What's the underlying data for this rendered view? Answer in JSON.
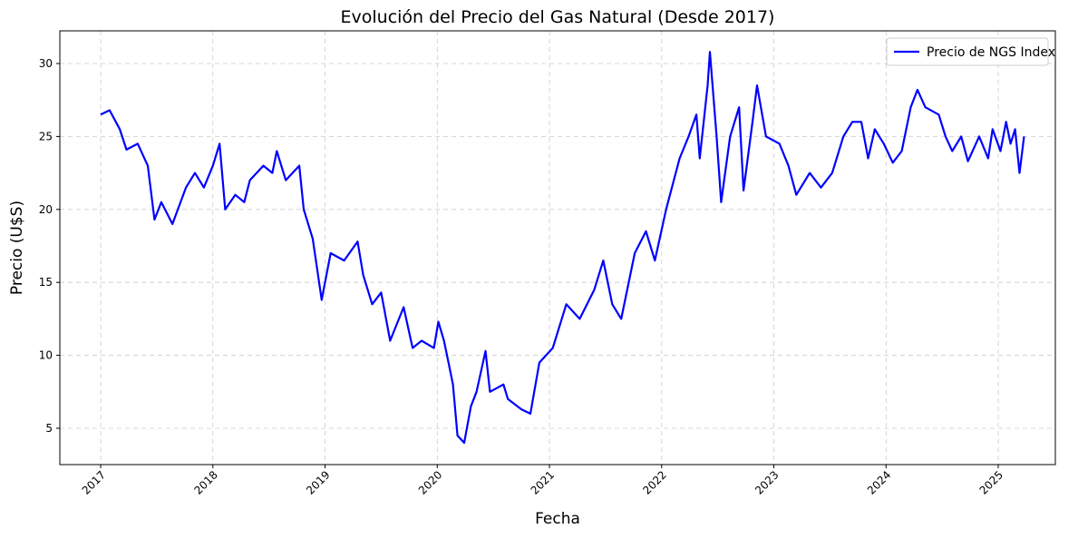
{
  "chart_data": {
    "type": "line",
    "title": "Evolución del Precio del Gas Natural (Desde 2017)",
    "x_label": "Fecha",
    "y_label": "Precio (U$S)",
    "series": [
      {
        "name": "Precio de NGS Index",
        "color": "#0000ff",
        "x": [
          2017.0,
          2017.08,
          2017.17,
          2017.23,
          2017.33,
          2017.42,
          2017.48,
          2017.54,
          2017.64,
          2017.76,
          2017.84,
          2017.92,
          2018.0,
          2018.06,
          2018.11,
          2018.2,
          2018.28,
          2018.33,
          2018.45,
          2018.53,
          2018.57,
          2018.65,
          2018.77,
          2018.81,
          2018.89,
          2018.97,
          2019.05,
          2019.17,
          2019.29,
          2019.34,
          2019.42,
          2019.5,
          2019.58,
          2019.7,
          2019.78,
          2019.86,
          2019.97,
          2020.01,
          2020.06,
          2020.1,
          2020.14,
          2020.18,
          2020.24,
          2020.3,
          2020.35,
          2020.43,
          2020.47,
          2020.59,
          2020.63,
          2020.75,
          2020.83,
          2020.91,
          2021.03,
          2021.15,
          2021.27,
          2021.4,
          2021.48,
          2021.56,
          2021.64,
          2021.76,
          2021.86,
          2021.94,
          2022.04,
          2022.16,
          2022.24,
          2022.31,
          2022.34,
          2022.41,
          2022.43,
          2022.49,
          2022.53,
          2022.61,
          2022.69,
          2022.73,
          2022.81,
          2022.85,
          2022.93,
          2023.05,
          2023.13,
          2023.2,
          2023.32,
          2023.42,
          2023.52,
          2023.62,
          2023.7,
          2023.78,
          2023.84,
          2023.9,
          2023.98,
          2024.06,
          2024.14,
          2024.22,
          2024.28,
          2024.35,
          2024.47,
          2024.53,
          2024.59,
          2024.67,
          2024.73,
          2024.83,
          2024.91,
          2024.95,
          2025.02,
          2025.07,
          2025.11,
          2025.15,
          2025.19,
          2025.23
        ],
        "values": [
          26.5,
          26.8,
          25.5,
          24.1,
          24.5,
          23,
          19.3,
          20.5,
          19,
          21.5,
          22.5,
          21.5,
          23,
          24.5,
          20,
          21,
          20.5,
          22,
          23,
          22.5,
          24,
          22,
          23,
          20,
          18,
          13.8,
          17,
          16.5,
          17.8,
          15.5,
          13.5,
          14.3,
          11,
          13.3,
          10.5,
          11,
          10.5,
          12.3,
          11,
          9.5,
          8,
          4.5,
          4,
          6.5,
          7.5,
          10.3,
          7.5,
          8,
          7,
          6.3,
          6,
          9.5,
          10.5,
          13.5,
          12.5,
          14.5,
          16.5,
          13.5,
          12.5,
          17,
          18.5,
          16.5,
          20,
          23.5,
          25,
          26.5,
          23.5,
          28.5,
          30.8,
          25,
          20.5,
          25,
          27,
          21.3,
          26,
          28.5,
          25,
          24.5,
          23,
          21,
          22.5,
          21.5,
          22.5,
          25,
          26,
          26,
          23.5,
          25.5,
          24.5,
          23.2,
          24,
          27,
          28.2,
          27,
          26.5,
          25,
          24,
          25,
          23.3,
          25,
          23.5,
          25.5,
          24,
          26,
          24.5,
          25.5,
          22.5,
          25
        ]
      }
    ],
    "xlim": [
      2016.636,
      2025.509
    ],
    "xticks": [
      2017,
      2018,
      2019,
      2020,
      2021,
      2022,
      2023,
      2024,
      2025
    ],
    "ylim": [
      2.51,
      32.24
    ],
    "yticks": [
      5,
      10,
      15,
      20,
      25,
      30
    ],
    "grid": true,
    "legend": "upper right"
  }
}
